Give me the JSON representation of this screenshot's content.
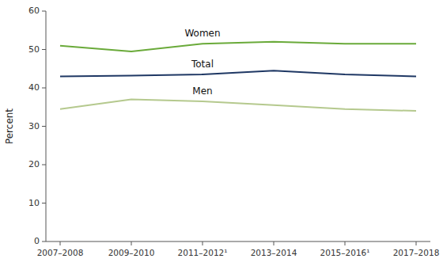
{
  "chart_data": {
    "type": "line",
    "categories": [
      "2007–2008",
      "2009–2010",
      "2011–2012¹",
      "2013–2014",
      "2015–2016¹",
      "2017–2018"
    ],
    "series": [
      {
        "name": "Women",
        "color": "#6aaa3a",
        "values": [
          51.0,
          49.5,
          51.5,
          52.0,
          51.5,
          51.5
        ]
      },
      {
        "name": "Total",
        "color": "#1f3864",
        "values": [
          43.0,
          43.2,
          43.5,
          44.5,
          43.5,
          43.0
        ]
      },
      {
        "name": "Men",
        "color": "#b5c98e",
        "values": [
          34.5,
          37.0,
          36.5,
          35.5,
          34.5,
          34.0
        ]
      }
    ],
    "ylabel": "Percent",
    "ylim": [
      0,
      60
    ],
    "yticks": [
      0,
      10,
      20,
      30,
      40,
      50,
      60
    ],
    "grid": false
  }
}
